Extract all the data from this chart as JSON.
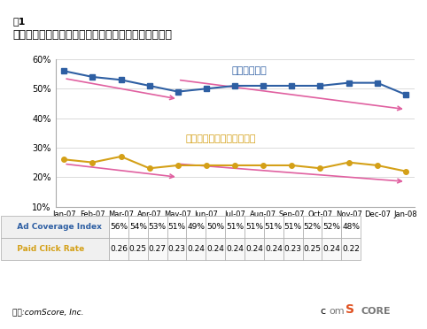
{
  "title_line1": "図1",
  "title_line2": "グーグルの検索広告表示と有料広告クリック率の傾向",
  "x_labels": [
    "Jan-07",
    "Feb-07",
    "Mar-07",
    "Apr-07",
    "May-07",
    "Jun-07",
    "Jul-07",
    "Aug-07",
    "Sep-07",
    "Oct-07",
    "Nov-07",
    "Dec-07",
    "Jan-08"
  ],
  "ad_coverage": [
    56,
    54,
    53,
    51,
    49,
    50,
    51,
    51,
    51,
    51,
    52,
    52,
    48
  ],
  "paid_click": [
    0.26,
    0.25,
    0.27,
    0.23,
    0.24,
    0.24,
    0.24,
    0.24,
    0.24,
    0.23,
    0.25,
    0.24,
    0.22
  ],
  "ad_coverage_labels": [
    "56%",
    "54%",
    "53%",
    "51%",
    "49%",
    "50%",
    "51%",
    "51%",
    "51%",
    "51%",
    "52%",
    "52%",
    "48%"
  ],
  "paid_click_labels": [
    "0.26",
    "0.25",
    "0.27",
    "0.23",
    "0.24",
    "0.24",
    "0.24",
    "0.24",
    "0.24",
    "0.23",
    "0.25",
    "0.24",
    "0.22"
  ],
  "ad_color": "#2e5fa3",
  "click_color": "#d4a017",
  "arrow_color": "#e060a0",
  "ylim_min": 10,
  "ylim_max": 60,
  "yticks": [
    10,
    20,
    30,
    40,
    50,
    60
  ],
  "annotation_coverage": "広告の掲載率",
  "annotation_click": "有料検索広告のクリック率",
  "legend_coverage": "Ad Coverage Index",
  "legend_click": "Paid Click Rate",
  "source": "出典:comScore, Inc.",
  "bg_color": "#ffffff",
  "plot_bg_color": "#ffffff",
  "table_bg_color": "#f5f5f5"
}
